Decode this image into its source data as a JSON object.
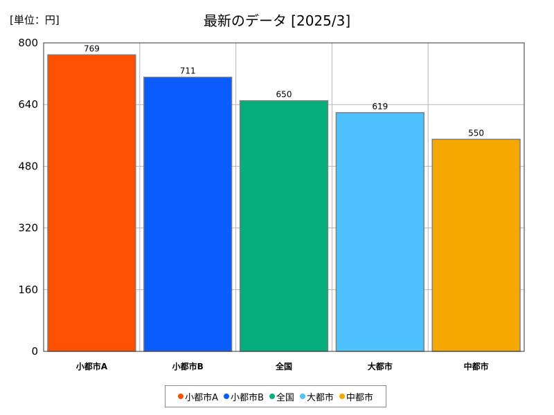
{
  "unit_label": "[単位：円]",
  "chart_data": {
    "type": "bar",
    "title": "最新のデータ [2025/3]",
    "xlabel": "",
    "ylabel": "",
    "ylim": [
      0,
      800
    ],
    "yticks": [
      0,
      160,
      320,
      480,
      640,
      800
    ],
    "categories": [
      "小都市A",
      "小都市B",
      "全国",
      "大都市",
      "中都市"
    ],
    "values": [
      769,
      711,
      650,
      619,
      550
    ],
    "colors": [
      "#ff4f00",
      "#0a5cff",
      "#05ae7c",
      "#4dc2ff",
      "#f5a800"
    ],
    "grid": true,
    "legend_position": "bottom"
  }
}
